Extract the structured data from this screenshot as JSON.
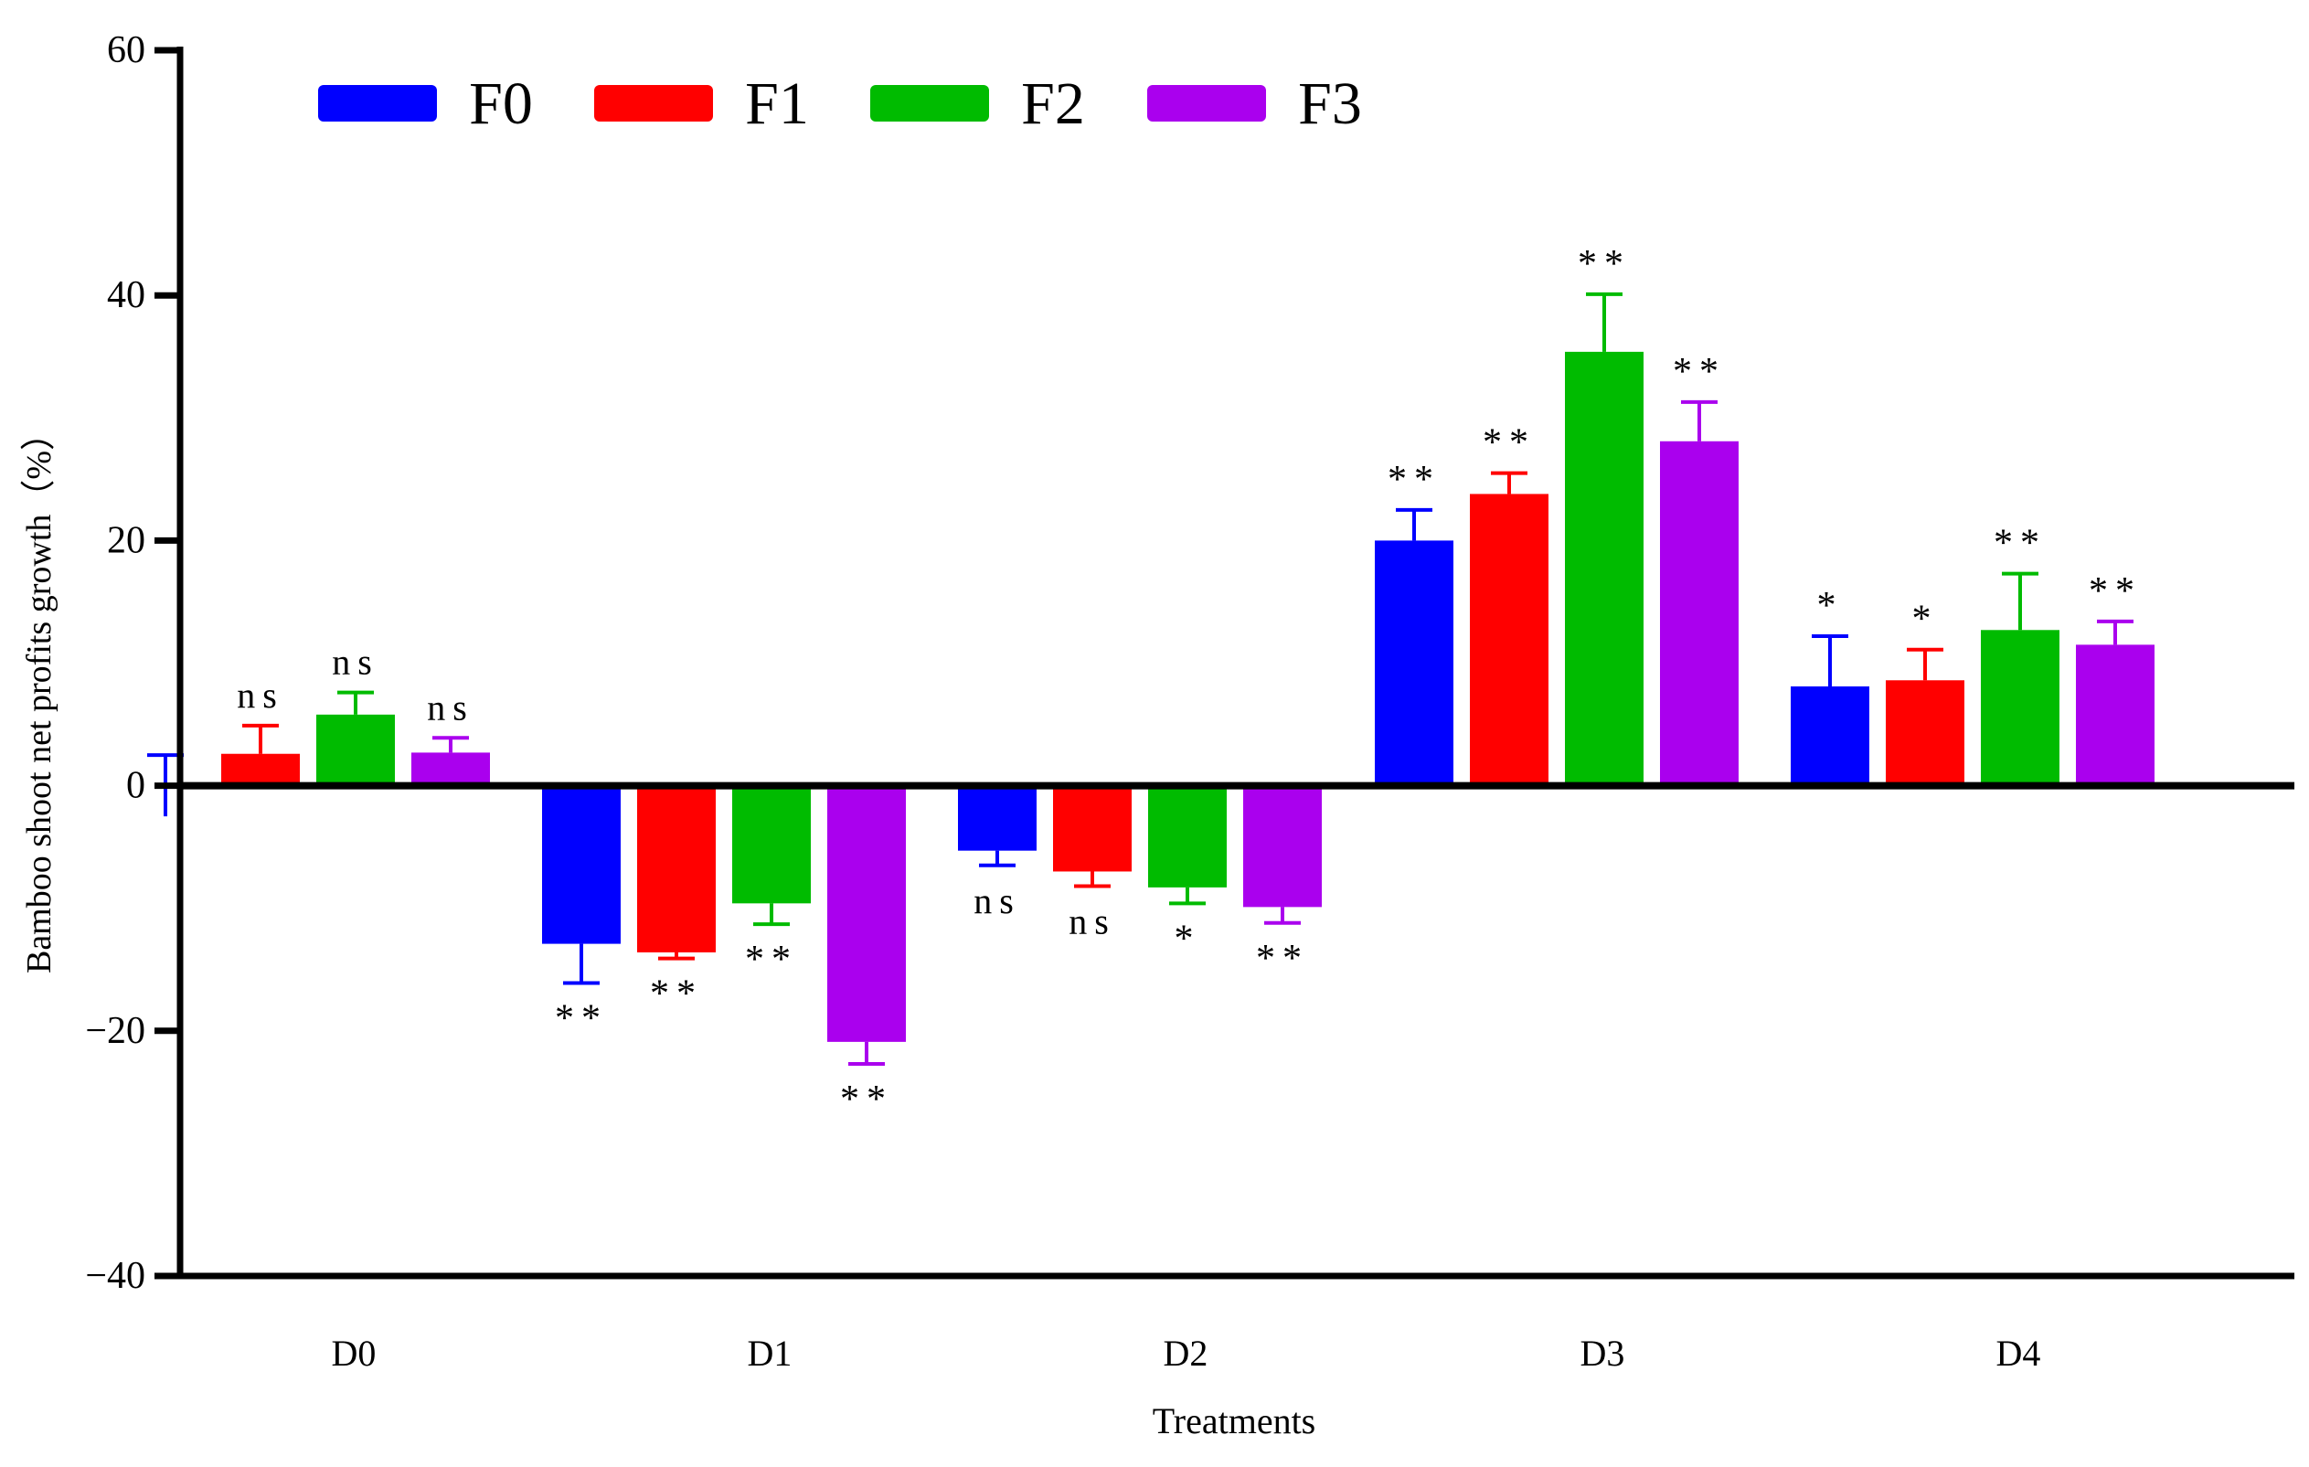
{
  "chart_data": {
    "type": "bar",
    "title": "",
    "xlabel": "Treatments",
    "ylabel": "Bamboo shoot net profits growth（%）",
    "ylim": [
      -40,
      60
    ],
    "yticks": [
      -40,
      -20,
      0,
      20,
      40,
      60
    ],
    "ytick_labels": [
      "−40",
      "−20",
      "0",
      "20",
      "40",
      "60"
    ],
    "categories": [
      "D0",
      "D1",
      "D2",
      "D3",
      "D4"
    ],
    "legend_position": "top-left",
    "series": [
      {
        "name": "F0",
        "color": "#0000ff",
        "values": [
          0,
          -12.9,
          -5.3,
          20.0,
          8.1
        ],
        "errors": [
          2.5,
          3.2,
          1.2,
          2.5,
          4.1
        ],
        "labels": [
          "",
          "**",
          "ns",
          "**",
          "*"
        ]
      },
      {
        "name": "F1",
        "color": "#ff0000",
        "values": [
          2.6,
          -13.6,
          -7.0,
          23.8,
          8.6
        ],
        "errors": [
          2.3,
          0.5,
          1.2,
          1.7,
          2.5
        ],
        "labels": [
          "ns",
          "**",
          "ns",
          "**",
          "*"
        ]
      },
      {
        "name": "F2",
        "color": "#00bb00",
        "values": [
          5.8,
          -9.6,
          -8.3,
          35.4,
          12.7
        ],
        "errors": [
          1.8,
          1.7,
          1.3,
          4.7,
          4.6
        ],
        "labels": [
          "ns",
          "**",
          "*",
          "**",
          "**"
        ]
      },
      {
        "name": "F3",
        "color": "#aa00ee",
        "values": [
          2.7,
          -20.9,
          -9.9,
          28.1,
          11.5
        ],
        "errors": [
          1.2,
          1.8,
          1.3,
          3.2,
          1.9
        ],
        "labels": [
          "ns",
          "**",
          "**",
          "**",
          "**"
        ]
      }
    ]
  }
}
